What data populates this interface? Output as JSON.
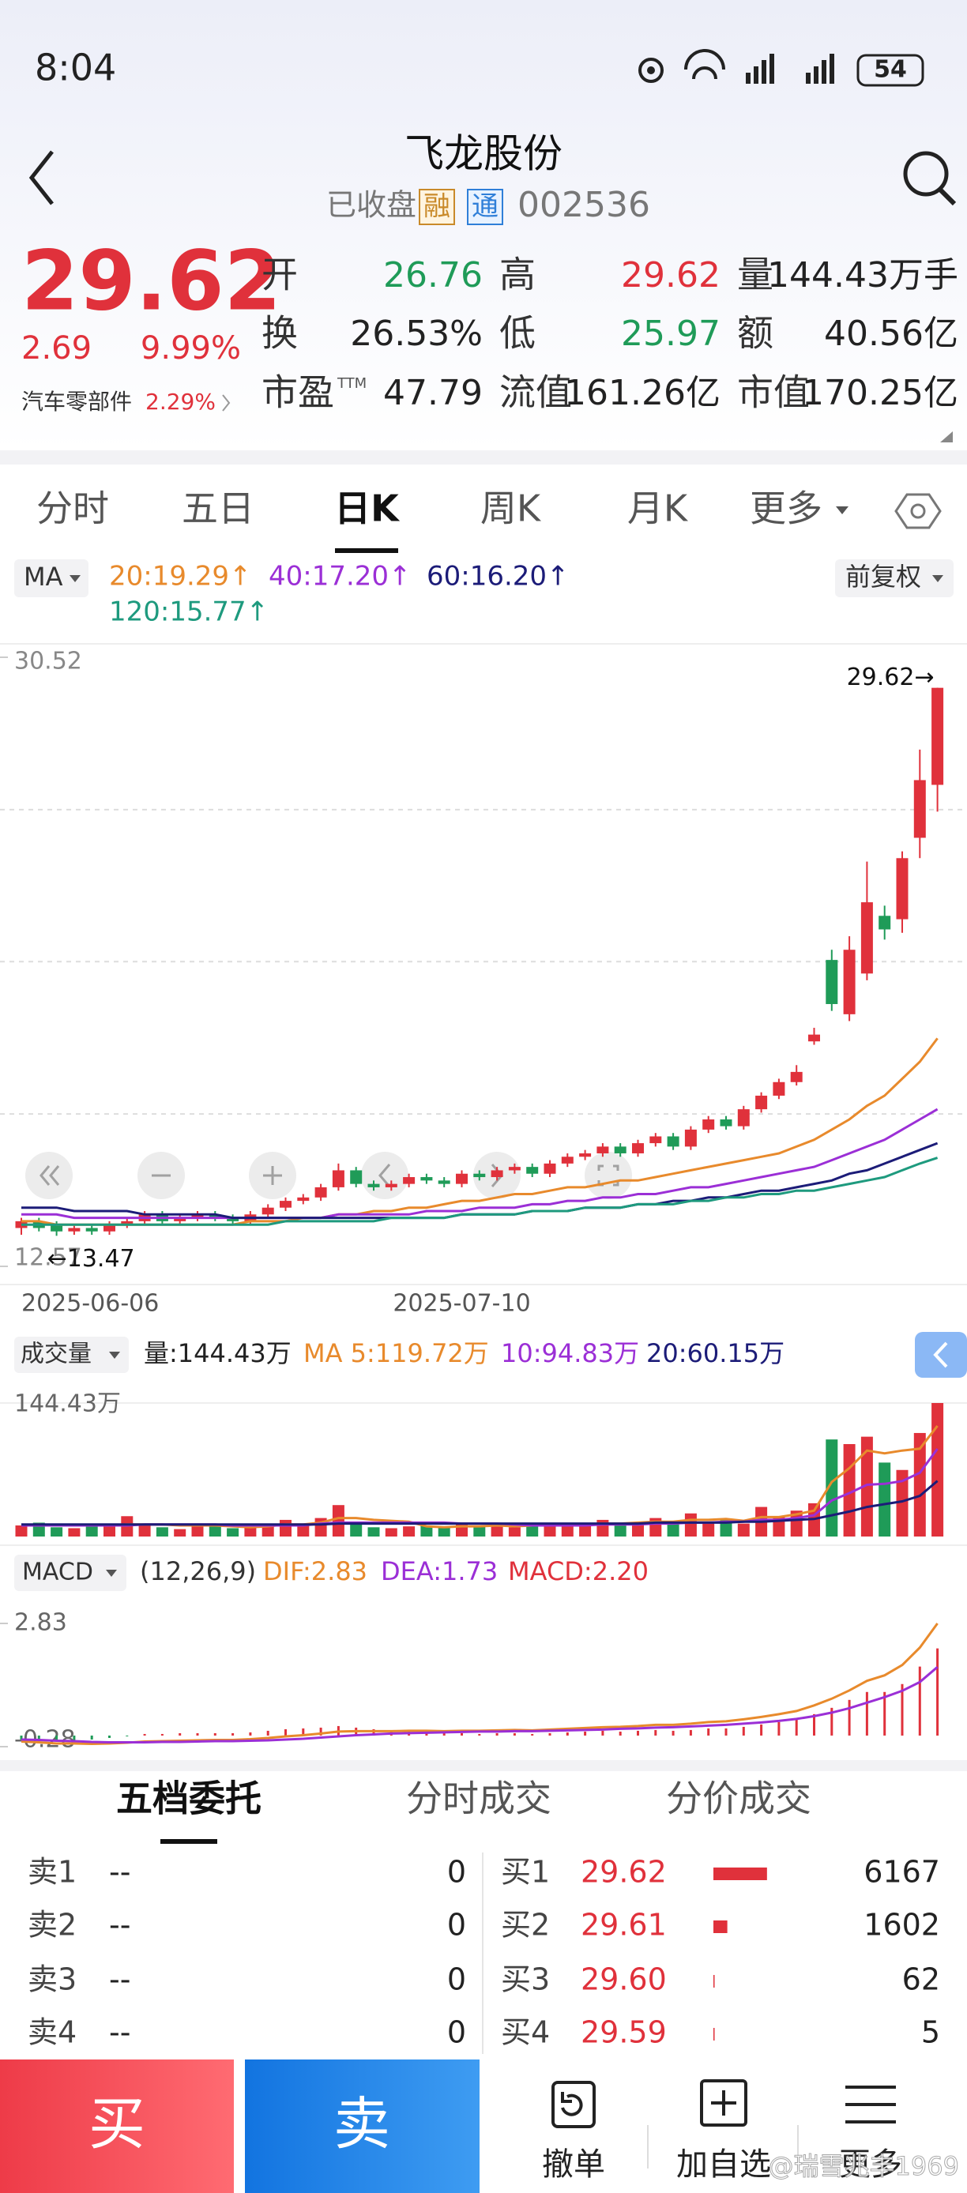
{
  "status_bar": {
    "time": "8:04",
    "battery": "54"
  },
  "header": {
    "title": "飞龙股份",
    "status": "已收盘",
    "badges": [
      "融",
      "通"
    ],
    "code": "002536"
  },
  "quote": {
    "price": "29.62",
    "change": "2.69",
    "change_pct": "9.99%",
    "sector": "汽车零部件",
    "sector_pct": "2.29%",
    "color": "#e0313b"
  },
  "stats": [
    [
      {
        "label": "开",
        "value": "26.76",
        "color": "#1f9b58"
      },
      {
        "label": "高",
        "value": "29.62",
        "color": "#e0313b"
      },
      {
        "label": "量",
        "value": "144.43万手",
        "color": "#222222"
      }
    ],
    [
      {
        "label": "换",
        "value": "26.53%",
        "color": "#222222"
      },
      {
        "label": "低",
        "value": "25.97",
        "color": "#1f9b58"
      },
      {
        "label": "额",
        "value": "40.56亿",
        "color": "#222222"
      }
    ],
    [
      {
        "label": "市盈",
        "sup": "TTM",
        "value": "47.79",
        "color": "#222222"
      },
      {
        "label": "流值",
        "value": "161.26亿",
        "color": "#222222"
      },
      {
        "label": "市值",
        "value": "170.25亿",
        "color": "#222222"
      }
    ]
  ],
  "tabs": [
    "分时",
    "五日",
    "日K",
    "周K",
    "月K",
    "更多"
  ],
  "active_tab": "日K",
  "chart_controls": {
    "indicator": "MA",
    "adjust": "前复权"
  },
  "chart_data": [
    {
      "type": "candlestick",
      "up_color": "#e0313b",
      "down_color": "#1f9b58",
      "categories": [
        "2025-06-06",
        null,
        null,
        null,
        null,
        null,
        null,
        null,
        null,
        null,
        null,
        null,
        null,
        null,
        null,
        null,
        null,
        null,
        null,
        null,
        null,
        null,
        null,
        null,
        null,
        "2025-07-10",
        null,
        null,
        null,
        null,
        null,
        null,
        null,
        null,
        null,
        null,
        null,
        null,
        null,
        null,
        null,
        null,
        null,
        null,
        null,
        null,
        null,
        null,
        null,
        null,
        null,
        null,
        null
      ],
      "open": [
        13.7,
        13.9,
        13.8,
        13.6,
        13.7,
        13.6,
        13.8,
        13.9,
        14.1,
        13.9,
        14.0,
        14.1,
        14.0,
        13.9,
        14.1,
        14.3,
        14.5,
        14.6,
        14.9,
        15.4,
        15.0,
        14.9,
        15.0,
        15.2,
        15.1,
        15.0,
        15.3,
        15.2,
        15.4,
        15.5,
        15.3,
        15.6,
        15.8,
        15.9,
        16.1,
        15.9,
        16.2,
        16.4,
        16.1,
        16.6,
        16.9,
        16.7,
        17.2,
        17.6,
        18.0,
        19.2,
        21.6,
        20.0,
        21.2,
        22.9,
        22.8,
        25.2,
        26.76
      ],
      "high": [
        14.0,
        14.0,
        13.9,
        13.8,
        13.8,
        13.9,
        14.0,
        14.2,
        14.2,
        14.1,
        14.2,
        14.2,
        14.1,
        14.2,
        14.4,
        14.6,
        14.7,
        15.0,
        15.6,
        15.5,
        15.1,
        15.1,
        15.3,
        15.3,
        15.2,
        15.4,
        15.4,
        15.5,
        15.6,
        15.6,
        15.7,
        15.9,
        16.0,
        16.2,
        16.2,
        16.3,
        16.5,
        16.5,
        16.7,
        17.0,
        17.0,
        17.3,
        17.7,
        18.1,
        18.5,
        19.6,
        21.9,
        22.3,
        24.5,
        23.2,
        24.8,
        27.8,
        29.62
      ],
      "low": [
        13.5,
        13.6,
        13.47,
        13.5,
        13.5,
        13.5,
        13.7,
        13.8,
        13.8,
        13.8,
        13.9,
        13.9,
        13.8,
        13.8,
        14.0,
        14.2,
        14.4,
        14.5,
        14.8,
        14.9,
        14.8,
        14.8,
        14.9,
        15.0,
        14.9,
        14.9,
        15.1,
        15.1,
        15.3,
        15.2,
        15.2,
        15.5,
        15.7,
        15.8,
        15.8,
        15.8,
        16.1,
        16.0,
        16.0,
        16.5,
        16.6,
        16.6,
        17.1,
        17.5,
        17.9,
        19.1,
        20.1,
        19.8,
        21.0,
        22.2,
        22.4,
        24.6,
        25.97
      ],
      "close": [
        13.9,
        13.7,
        13.6,
        13.7,
        13.6,
        13.8,
        13.9,
        14.1,
        13.9,
        14.0,
        14.1,
        14.0,
        13.9,
        14.1,
        14.3,
        14.5,
        14.6,
        14.9,
        15.4,
        15.0,
        14.9,
        15.0,
        15.2,
        15.1,
        15.0,
        15.3,
        15.2,
        15.4,
        15.5,
        15.3,
        15.6,
        15.8,
        15.9,
        16.1,
        15.9,
        16.2,
        16.4,
        16.1,
        16.6,
        16.9,
        16.7,
        17.2,
        17.6,
        18.0,
        18.3,
        19.4,
        20.3,
        21.9,
        23.3,
        22.5,
        24.6,
        26.9,
        29.62
      ],
      "series": [
        {
          "name": "20:19.29↑",
          "color": "#e88a2c",
          "values": [
            13.9,
            13.9,
            13.8,
            13.8,
            13.8,
            13.8,
            13.8,
            13.8,
            13.8,
            13.8,
            13.8,
            13.8,
            13.8,
            13.9,
            13.9,
            13.9,
            14.0,
            14.0,
            14.1,
            14.1,
            14.2,
            14.2,
            14.3,
            14.3,
            14.4,
            14.5,
            14.5,
            14.6,
            14.7,
            14.7,
            14.8,
            14.9,
            14.9,
            15.0,
            15.1,
            15.1,
            15.2,
            15.3,
            15.4,
            15.5,
            15.6,
            15.7,
            15.8,
            15.9,
            16.1,
            16.3,
            16.6,
            16.9,
            17.3,
            17.6,
            18.1,
            18.6,
            19.29
          ]
        },
        {
          "name": "40:17.20↑",
          "color": "#9b2fd6",
          "values": [
            14.1,
            14.1,
            14.1,
            14.0,
            14.0,
            14.0,
            14.0,
            14.0,
            14.0,
            14.0,
            14.0,
            14.0,
            14.0,
            14.0,
            14.0,
            14.0,
            14.0,
            14.0,
            14.1,
            14.1,
            14.1,
            14.1,
            14.1,
            14.2,
            14.2,
            14.2,
            14.3,
            14.3,
            14.3,
            14.4,
            14.4,
            14.5,
            14.5,
            14.6,
            14.6,
            14.7,
            14.7,
            14.8,
            14.9,
            14.9,
            15.0,
            15.1,
            15.2,
            15.3,
            15.4,
            15.5,
            15.7,
            15.9,
            16.1,
            16.3,
            16.6,
            16.9,
            17.2
          ]
        },
        {
          "name": "60:16.20↑",
          "color": "#1c1c78",
          "values": [
            14.3,
            14.3,
            14.3,
            14.2,
            14.2,
            14.2,
            14.2,
            14.1,
            14.1,
            14.1,
            14.1,
            14.1,
            14.0,
            14.0,
            14.0,
            14.0,
            14.0,
            14.0,
            14.0,
            14.0,
            14.0,
            14.0,
            14.0,
            14.0,
            14.0,
            14.1,
            14.1,
            14.1,
            14.1,
            14.2,
            14.2,
            14.2,
            14.3,
            14.3,
            14.3,
            14.4,
            14.4,
            14.5,
            14.5,
            14.6,
            14.6,
            14.7,
            14.8,
            14.8,
            14.9,
            15.0,
            15.1,
            15.3,
            15.4,
            15.6,
            15.8,
            16.0,
            16.2
          ]
        },
        {
          "name": "120:15.77↑",
          "color": "#1e9a7e",
          "values": [
            13.8,
            13.8,
            13.8,
            13.8,
            13.8,
            13.8,
            13.8,
            13.8,
            13.8,
            13.8,
            13.8,
            13.8,
            13.8,
            13.8,
            13.8,
            13.9,
            13.9,
            13.9,
            13.9,
            13.9,
            13.9,
            14.0,
            14.0,
            14.0,
            14.0,
            14.1,
            14.1,
            14.1,
            14.1,
            14.2,
            14.2,
            14.2,
            14.3,
            14.3,
            14.3,
            14.4,
            14.4,
            14.4,
            14.5,
            14.5,
            14.6,
            14.6,
            14.7,
            14.7,
            14.8,
            14.8,
            14.9,
            15.0,
            15.1,
            15.2,
            15.4,
            15.6,
            15.77
          ]
        }
      ],
      "ylim": [
        12.57,
        30.52
      ],
      "yticks": [
        12.57,
        30.52
      ],
      "ygrid": [
        17.06,
        21.55,
        26.03
      ],
      "high_label": "29.62→",
      "low_label": "←13.47"
    },
    {
      "type": "volume",
      "title": "成交量",
      "volume_label": "量:144.43万",
      "values": [
        12,
        15,
        10,
        9,
        14,
        11,
        22,
        12,
        10,
        8,
        11,
        13,
        9,
        10,
        14,
        18,
        12,
        20,
        34,
        15,
        10,
        9,
        11,
        12,
        10,
        13,
        11,
        12,
        10,
        14,
        12,
        15,
        13,
        18,
        12,
        15,
        20,
        14,
        25,
        16,
        18,
        14,
        32,
        22,
        28,
        36,
        105,
        100,
        108,
        80,
        72,
        112,
        144.43
      ],
      "series": [
        {
          "name": "MA 5:119.72万",
          "color": "#e88a2c",
          "values": [
            12,
            13,
            12,
            12,
            12,
            12,
            13,
            13,
            13,
            12,
            12,
            12,
            11,
            10,
            11,
            13,
            13,
            15,
            20,
            20,
            18,
            17,
            16,
            11,
            10,
            11,
            11,
            12,
            11,
            12,
            12,
            13,
            13,
            14,
            14,
            15,
            16,
            16,
            18,
            18,
            19,
            17,
            21,
            21,
            24,
            28,
            59,
            74,
            93,
            90,
            93,
            95,
            119.72
          ]
        },
        {
          "name": "10:94.83万",
          "color": "#9b2fd6",
          "values": [
            12,
            12,
            12,
            12,
            12,
            12,
            12,
            13,
            13,
            13,
            13,
            13,
            12,
            12,
            12,
            12,
            12,
            14,
            15,
            15,
            15,
            15,
            15,
            15,
            15,
            14,
            14,
            14,
            13,
            12,
            12,
            12,
            12,
            13,
            13,
            13,
            14,
            14,
            15,
            15,
            16,
            16,
            18,
            18,
            20,
            23,
            39,
            47,
            56,
            57,
            60,
            69,
            94.83
          ]
        },
        {
          "name": "20:60.15万",
          "color": "#1c1c78",
          "values": [
            13,
            13,
            13,
            13,
            13,
            13,
            13,
            13,
            13,
            13,
            13,
            13,
            13,
            13,
            13,
            13,
            13,
            13,
            14,
            14,
            14,
            14,
            14,
            14,
            14,
            14,
            14,
            14,
            14,
            14,
            14,
            14,
            14,
            14,
            14,
            14,
            15,
            15,
            15,
            15,
            15,
            16,
            16,
            17,
            18,
            19,
            23,
            27,
            32,
            35,
            38,
            44,
            60.15
          ]
        }
      ],
      "ylim": [
        0,
        144.43
      ],
      "yticks": [
        {
          "value": 144.43,
          "label": "144.43万"
        }
      ]
    },
    {
      "type": "macd",
      "title": "MACD",
      "params": "(12,26,9)",
      "series": [
        {
          "name": "DIF:2.83",
          "color": "#e88a2c",
          "values": [
            -0.15,
            -0.17,
            -0.2,
            -0.2,
            -0.21,
            -0.2,
            -0.18,
            -0.15,
            -0.14,
            -0.13,
            -0.12,
            -0.11,
            -0.11,
            -0.09,
            -0.06,
            -0.02,
            0.01,
            0.05,
            0.1,
            0.11,
            0.11,
            0.11,
            0.12,
            0.12,
            0.11,
            0.12,
            0.12,
            0.13,
            0.14,
            0.13,
            0.15,
            0.17,
            0.19,
            0.21,
            0.22,
            0.24,
            0.27,
            0.27,
            0.3,
            0.34,
            0.36,
            0.41,
            0.47,
            0.54,
            0.62,
            0.76,
            0.93,
            1.14,
            1.38,
            1.52,
            1.78,
            2.22,
            2.83
          ]
        },
        {
          "name": "DEA:1.73",
          "color": "#9b2fd6",
          "values": [
            -0.1,
            -0.11,
            -0.13,
            -0.14,
            -0.16,
            -0.17,
            -0.17,
            -0.17,
            -0.16,
            -0.16,
            -0.15,
            -0.14,
            -0.14,
            -0.13,
            -0.12,
            -0.1,
            -0.08,
            -0.05,
            -0.02,
            0.01,
            0.03,
            0.05,
            0.06,
            0.07,
            0.08,
            0.09,
            0.1,
            0.1,
            0.11,
            0.11,
            0.12,
            0.13,
            0.14,
            0.15,
            0.17,
            0.18,
            0.2,
            0.21,
            0.23,
            0.25,
            0.27,
            0.3,
            0.33,
            0.37,
            0.42,
            0.49,
            0.58,
            0.69,
            0.83,
            0.97,
            1.13,
            1.35,
            1.73
          ]
        }
      ],
      "histogram": {
        "name": "MACD:2.20",
        "up_color": "#e0313b",
        "down_color": "#1f9b58",
        "values": [
          -0.1,
          -0.12,
          -0.14,
          -0.12,
          -0.1,
          -0.06,
          -0.02,
          0.04,
          0.04,
          0.06,
          0.06,
          0.06,
          0.06,
          0.08,
          0.12,
          0.16,
          0.18,
          0.2,
          0.24,
          0.2,
          0.16,
          0.12,
          0.12,
          0.1,
          0.06,
          0.06,
          0.04,
          0.06,
          0.06,
          0.04,
          0.06,
          0.08,
          0.1,
          0.12,
          0.1,
          0.12,
          0.14,
          0.12,
          0.14,
          0.18,
          0.18,
          0.22,
          0.28,
          0.34,
          0.4,
          0.54,
          0.7,
          0.9,
          1.1,
          1.1,
          1.3,
          1.74,
          2.2
        ]
      },
      "ylim": [
        -0.28,
        2.83
      ],
      "yticks": [
        -0.28,
        2.83
      ]
    }
  ],
  "order_tabs": [
    "五档委托",
    "分时成交",
    "分价成交"
  ],
  "active_order_tab": "五档委托",
  "sell": [
    {
      "label": "卖1",
      "price": "--",
      "qty": 0
    },
    {
      "label": "卖2",
      "price": "--",
      "qty": 0
    },
    {
      "label": "卖3",
      "price": "--",
      "qty": 0
    },
    {
      "label": "卖4",
      "price": "--",
      "qty": 0
    }
  ],
  "buy": [
    {
      "label": "买1",
      "price": "29.62",
      "qty": 6167
    },
    {
      "label": "买2",
      "price": "29.61",
      "qty": 1602
    },
    {
      "label": "买3",
      "price": "29.60",
      "qty": 62
    },
    {
      "label": "买4",
      "price": "29.59",
      "qty": 5
    }
  ],
  "bottom_nav": {
    "buy": "买",
    "sell": "卖",
    "items": [
      "撤单",
      "加自选",
      "更多"
    ]
  },
  "watermark": "@瑞雪兆丰1969"
}
